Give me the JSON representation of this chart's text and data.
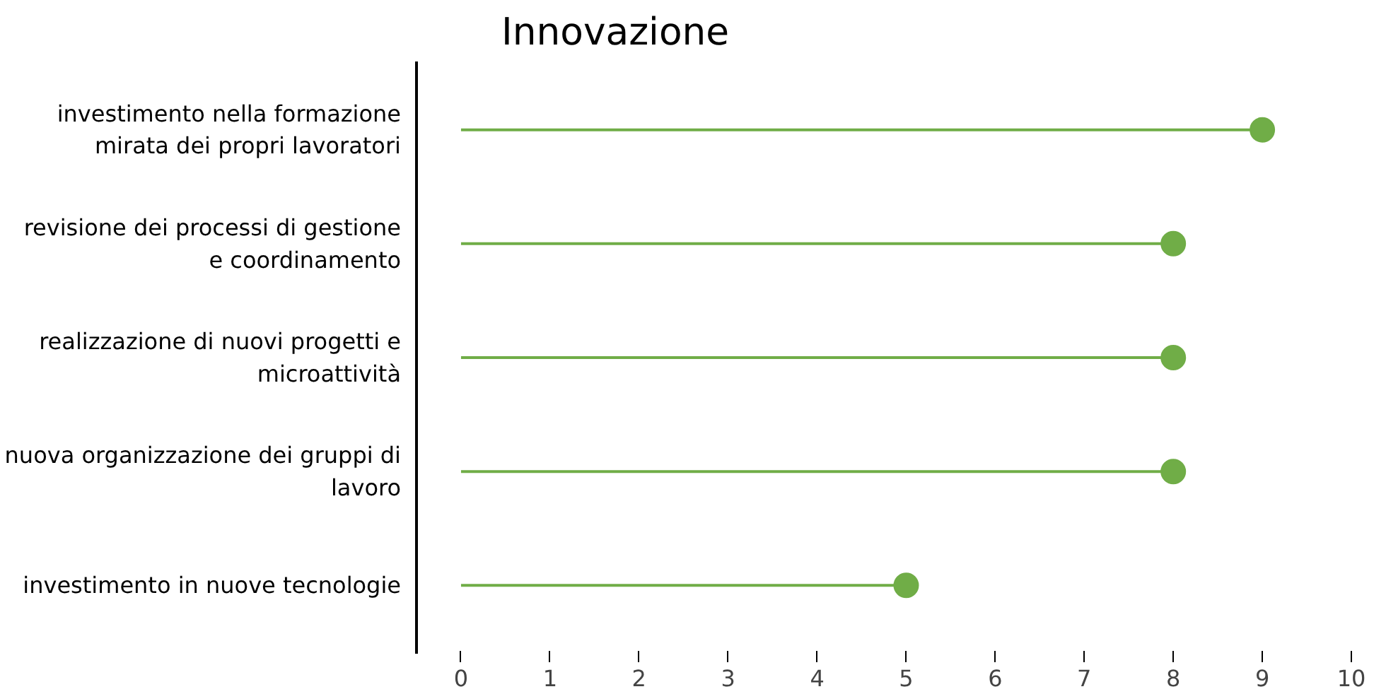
{
  "chart_data": {
    "type": "lollipop",
    "title": "Innovazione",
    "orientation": "horizontal",
    "categories": [
      "investimento nella formazione\nmirata dei propri lavoratori",
      "revisione dei processi di gestione\ne coordinamento",
      "realizzazione di nuovi progetti e\nmicroattività",
      "nuova organizzazione dei gruppi di\nlavoro",
      "investimento in nuove tecnologie"
    ],
    "values": [
      9,
      8,
      8,
      8,
      5
    ],
    "color": "#70ad47",
    "marker": "circle",
    "grid": false,
    "xlim": [
      -0.5,
      10
    ],
    "xticks": [
      0,
      1,
      2,
      3,
      4,
      5,
      6,
      7,
      8,
      9,
      10
    ]
  }
}
